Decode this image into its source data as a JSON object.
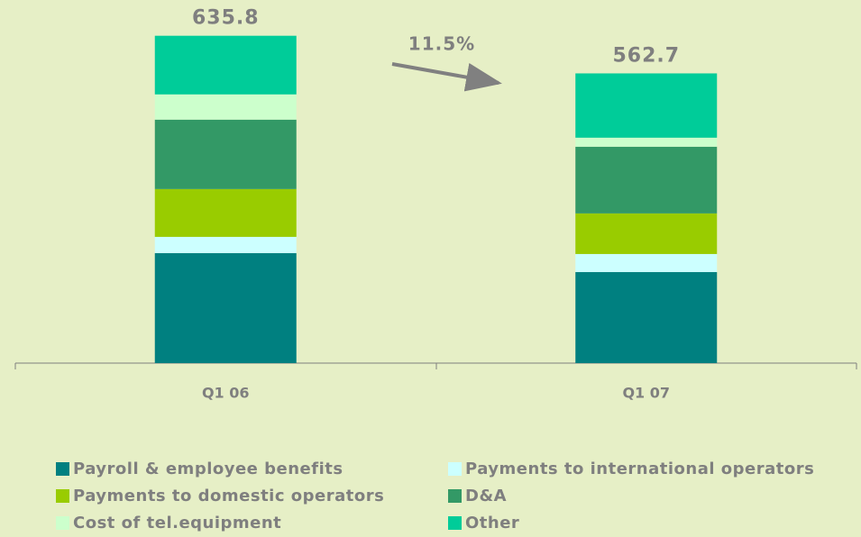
{
  "chart_data": {
    "type": "stacked_bar",
    "categories": [
      "Q1 06",
      "Q1 07"
    ],
    "series": [
      {
        "name": "Payroll & employee benefits",
        "color": "#008080",
        "values": [
          213.7,
          176.9
        ]
      },
      {
        "name": "Payments to international operators",
        "color": "#ccffff",
        "values": [
          31.5,
          35.0
        ]
      },
      {
        "name": "Payments to domestic operators",
        "color": "#99cc00",
        "values": [
          92.8,
          78.8
        ]
      },
      {
        "name": "D&A",
        "color": "#339966",
        "values": [
          134.9,
          129.6
        ]
      },
      {
        "name": "Cost of tel.equipment",
        "color": "#ccffcc",
        "values": [
          49.0,
          17.5
        ]
      },
      {
        "name": "Other",
        "color": "#00cc99",
        "values": [
          113.9,
          124.9
        ]
      }
    ],
    "totals": [
      635.8,
      562.7
    ],
    "annotation": "11.5%",
    "ylim": [
      0,
      700
    ]
  }
}
